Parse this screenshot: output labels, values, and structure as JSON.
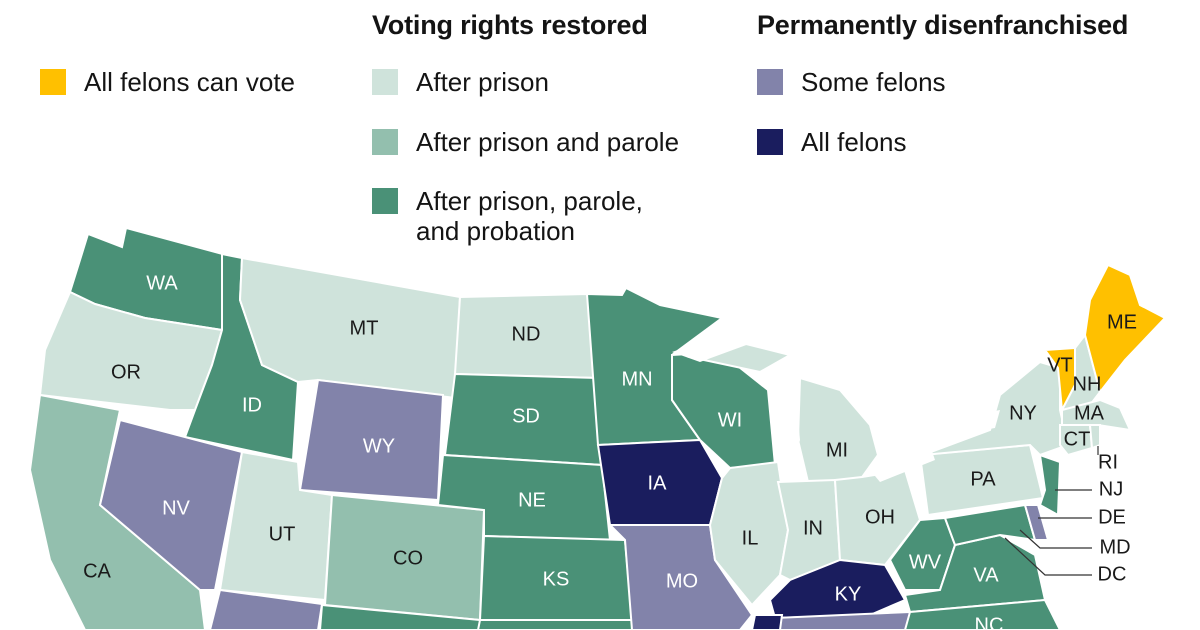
{
  "colors": {
    "all_vote": "#ffc000",
    "after_prison": "#cfe3db",
    "after_prison_parole": "#93bfae",
    "after_probation": "#4a9177",
    "some_felons": "#8283aa",
    "all_felons": "#1a1d5e",
    "label_light": "#ffffff",
    "label_dark": "#1a1a1a"
  },
  "legend": {
    "group_restored": "Voting rights restored",
    "group_permanent": "Permanently disenfranchised",
    "items": [
      {
        "key": "all_vote",
        "label": "All felons can vote"
      },
      {
        "key": "after_prison",
        "label": "After prison"
      },
      {
        "key": "after_prison_parole",
        "label": "After prison and parole"
      },
      {
        "key": "after_probation",
        "label": "After prison, parole,\nand probation"
      },
      {
        "key": "some_felons",
        "label": "Some felons"
      },
      {
        "key": "all_felons",
        "label": "All felons"
      }
    ]
  },
  "states": {
    "WA": "WA",
    "OR": "OR",
    "CA": "CA",
    "ID": "ID",
    "NV": "NV",
    "MT": "MT",
    "WY": "WY",
    "UT": "UT",
    "CO": "CO",
    "ND": "ND",
    "SD": "SD",
    "NE": "NE",
    "KS": "KS",
    "MN": "MN",
    "IA": "IA",
    "MO": "MO",
    "WI": "WI",
    "IL": "IL",
    "MI": "MI",
    "IN": "IN",
    "OH": "OH",
    "KY": "KY",
    "WV": "WV",
    "VA": "VA",
    "PA": "PA",
    "NY": "NY",
    "VT": "VT",
    "NH": "NH",
    "ME": "ME",
    "MA": "MA",
    "CT": "CT",
    "RI": "RI",
    "NJ": "NJ",
    "DE": "DE",
    "MD": "MD",
    "DC": "DC",
    "NC": "NC"
  }
}
